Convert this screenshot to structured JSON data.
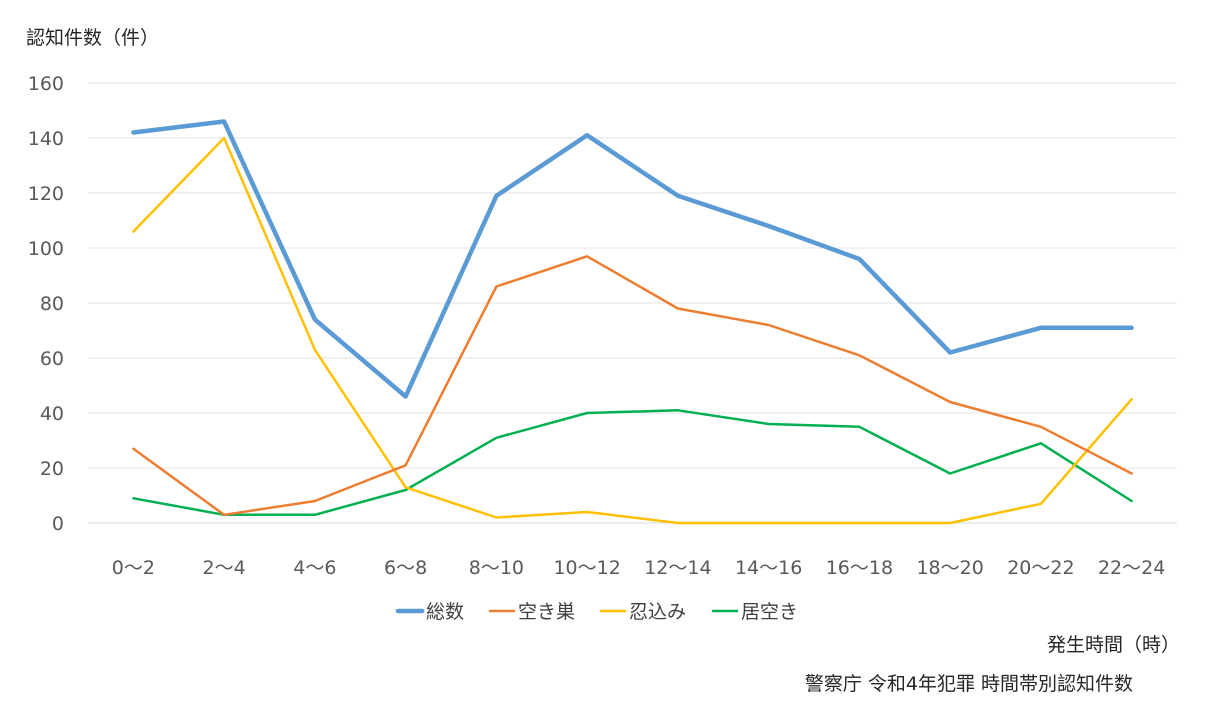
{
  "chart_data": {
    "type": "line",
    "ylabel": "認知件数（件）",
    "xlabel": "発生時間（時）",
    "source": "警察庁 令和4年犯罪 時間帯別認知件数",
    "ylim": [
      0,
      160
    ],
    "yticks": [
      0,
      20,
      40,
      60,
      80,
      100,
      120,
      140,
      160
    ],
    "grid": true,
    "legend_position": "bottom",
    "categories": [
      "0〜2",
      "2〜4",
      "4〜6",
      "6〜8",
      "8〜10",
      "10〜12",
      "12〜14",
      "14〜16",
      "16〜18",
      "18〜20",
      "20〜22",
      "22〜24"
    ],
    "series": [
      {
        "name": "総数",
        "color": "#5B9BD5",
        "values": [
          142,
          146,
          74,
          46,
          119,
          141,
          119,
          108,
          96,
          62,
          71,
          71
        ]
      },
      {
        "name": "空き巣",
        "color": "#ED7D31",
        "values": [
          27,
          3,
          8,
          21,
          86,
          97,
          78,
          72,
          61,
          44,
          35,
          18
        ]
      },
      {
        "name": "忍込み",
        "color": "#FFC000",
        "values": [
          106,
          140,
          63,
          13,
          2,
          4,
          0,
          0,
          0,
          0,
          7,
          45
        ]
      },
      {
        "name": "居空き",
        "color": "#00B050",
        "values": [
          9,
          3,
          3,
          12,
          31,
          40,
          41,
          36,
          35,
          18,
          29,
          8
        ]
      }
    ]
  }
}
